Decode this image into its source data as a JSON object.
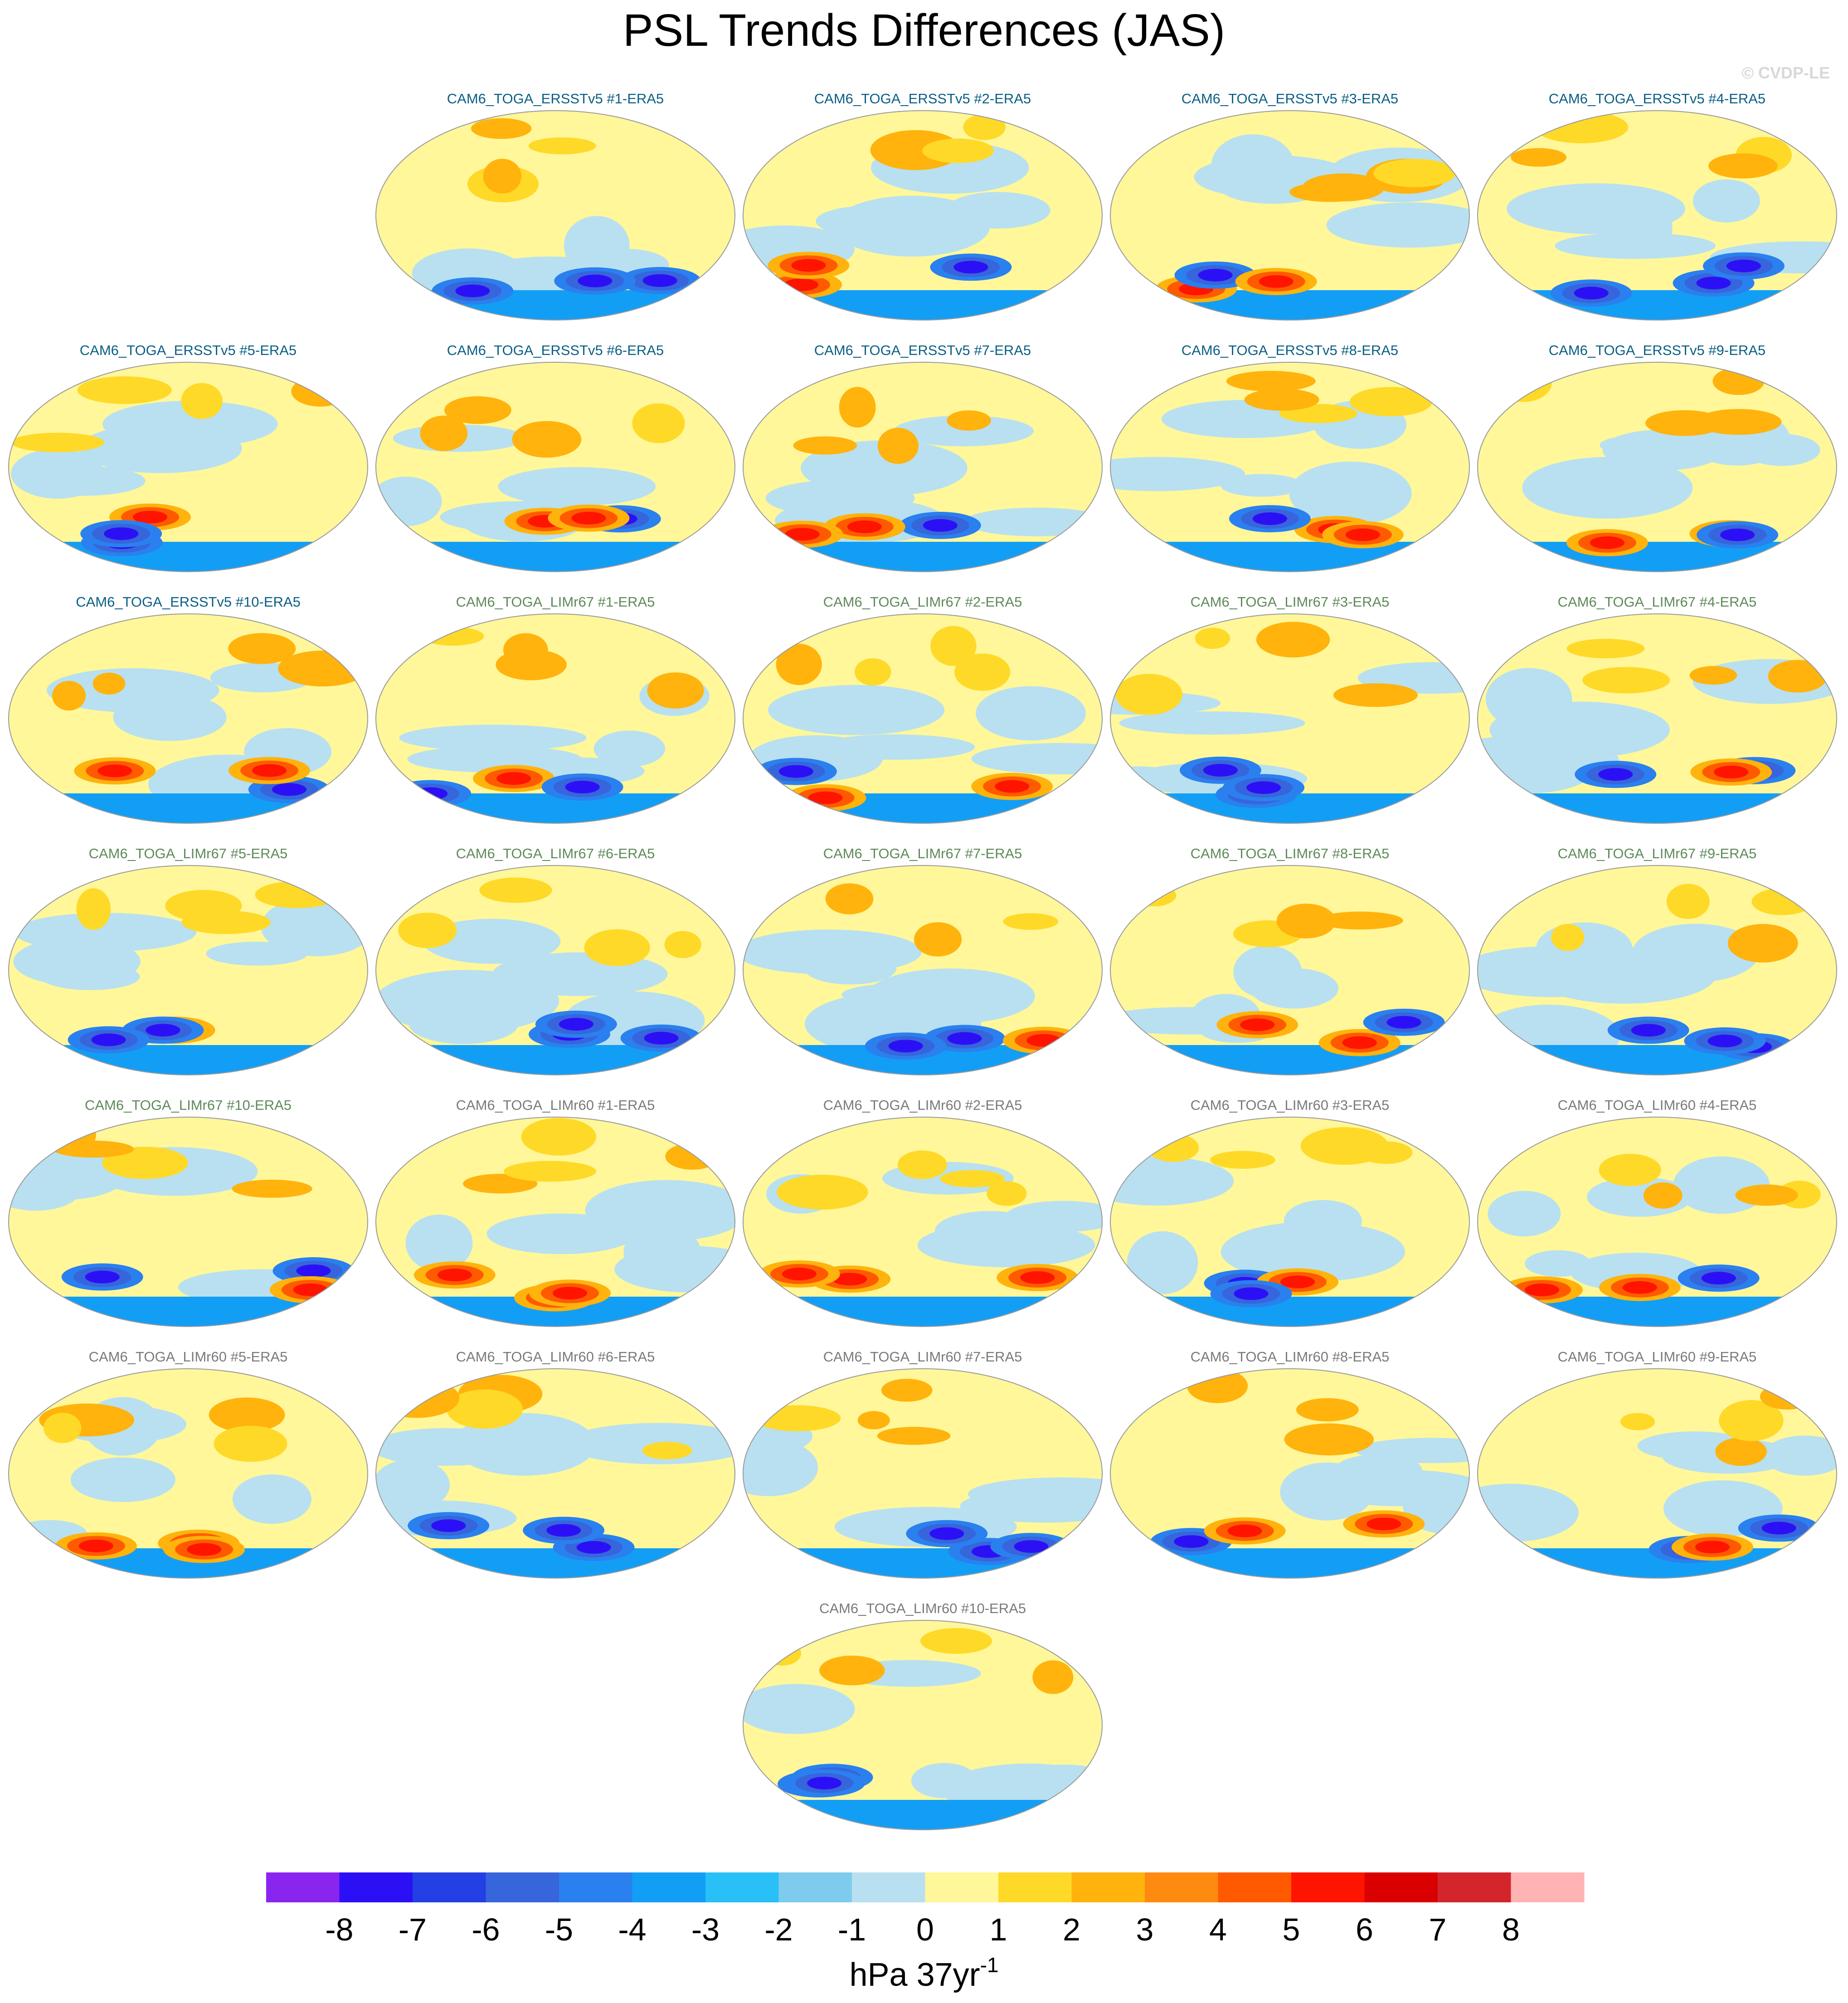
{
  "title": "PSL Trends Differences (JAS)",
  "copyright": "© CVDP-LE",
  "colorbar": {
    "unit_label": "hPa 37yr",
    "unit_superscript": "-1",
    "tick_labels": [
      "-8",
      "-7",
      "-6",
      "-5",
      "-4",
      "-3",
      "-2",
      "-1",
      "0",
      "1",
      "2",
      "3",
      "4",
      "5",
      "6",
      "7",
      "8"
    ],
    "colors": [
      "#8a25f0",
      "#2c10f5",
      "#2240e4",
      "#3765dc",
      "#2a80ef",
      "#139ef5",
      "#28c0f6",
      "#7fcbed",
      "#b8e0f0",
      "#fff79a",
      "#ffd927",
      "#ffb30c",
      "#ff8a10",
      "#ff5a00",
      "#ff1400",
      "#db0000",
      "#d2262c",
      "#ffb3b3"
    ]
  },
  "panels": [
    {
      "title": "CAM6_TOGA_ERSSTv5 #1-ERA5",
      "group": "ersst"
    },
    {
      "title": "CAM6_TOGA_ERSSTv5 #2-ERA5",
      "group": "ersst"
    },
    {
      "title": "CAM6_TOGA_ERSSTv5 #3-ERA5",
      "group": "ersst"
    },
    {
      "title": "CAM6_TOGA_ERSSTv5 #4-ERA5",
      "group": "ersst"
    },
    {
      "title": "CAM6_TOGA_ERSSTv5 #5-ERA5",
      "group": "ersst"
    },
    {
      "title": "CAM6_TOGA_ERSSTv5 #6-ERA5",
      "group": "ersst"
    },
    {
      "title": "CAM6_TOGA_ERSSTv5 #7-ERA5",
      "group": "ersst"
    },
    {
      "title": "CAM6_TOGA_ERSSTv5 #8-ERA5",
      "group": "ersst"
    },
    {
      "title": "CAM6_TOGA_ERSSTv5 #9-ERA5",
      "group": "ersst"
    },
    {
      "title": "CAM6_TOGA_ERSSTv5 #10-ERA5",
      "group": "ersst"
    },
    {
      "title": "CAM6_TOGA_LIMr67 #1-ERA5",
      "group": "lim67"
    },
    {
      "title": "CAM6_TOGA_LIMr67 #2-ERA5",
      "group": "lim67"
    },
    {
      "title": "CAM6_TOGA_LIMr67 #3-ERA5",
      "group": "lim67"
    },
    {
      "title": "CAM6_TOGA_LIMr67 #4-ERA5",
      "group": "lim67"
    },
    {
      "title": "CAM6_TOGA_LIMr67 #5-ERA5",
      "group": "lim67"
    },
    {
      "title": "CAM6_TOGA_LIMr67 #6-ERA5",
      "group": "lim67"
    },
    {
      "title": "CAM6_TOGA_LIMr67 #7-ERA5",
      "group": "lim67"
    },
    {
      "title": "CAM6_TOGA_LIMr67 #8-ERA5",
      "group": "lim67"
    },
    {
      "title": "CAM6_TOGA_LIMr67 #9-ERA5",
      "group": "lim67"
    },
    {
      "title": "CAM6_TOGA_LIMr67 #10-ERA5",
      "group": "lim67"
    },
    {
      "title": "CAM6_TOGA_LIMr60 #1-ERA5",
      "group": "lim60"
    },
    {
      "title": "CAM6_TOGA_LIMr60 #2-ERA5",
      "group": "lim60"
    },
    {
      "title": "CAM6_TOGA_LIMr60 #3-ERA5",
      "group": "lim60"
    },
    {
      "title": "CAM6_TOGA_LIMr60 #4-ERA5",
      "group": "lim60"
    },
    {
      "title": "CAM6_TOGA_LIMr60 #5-ERA5",
      "group": "lim60"
    },
    {
      "title": "CAM6_TOGA_LIMr60 #6-ERA5",
      "group": "lim60"
    },
    {
      "title": "CAM6_TOGA_LIMr60 #7-ERA5",
      "group": "lim60"
    },
    {
      "title": "CAM6_TOGA_LIMr60 #8-ERA5",
      "group": "lim60"
    },
    {
      "title": "CAM6_TOGA_LIMr60 #9-ERA5",
      "group": "lim60"
    },
    {
      "title": "CAM6_TOGA_LIMr60 #10-ERA5",
      "group": "lim60"
    }
  ]
}
